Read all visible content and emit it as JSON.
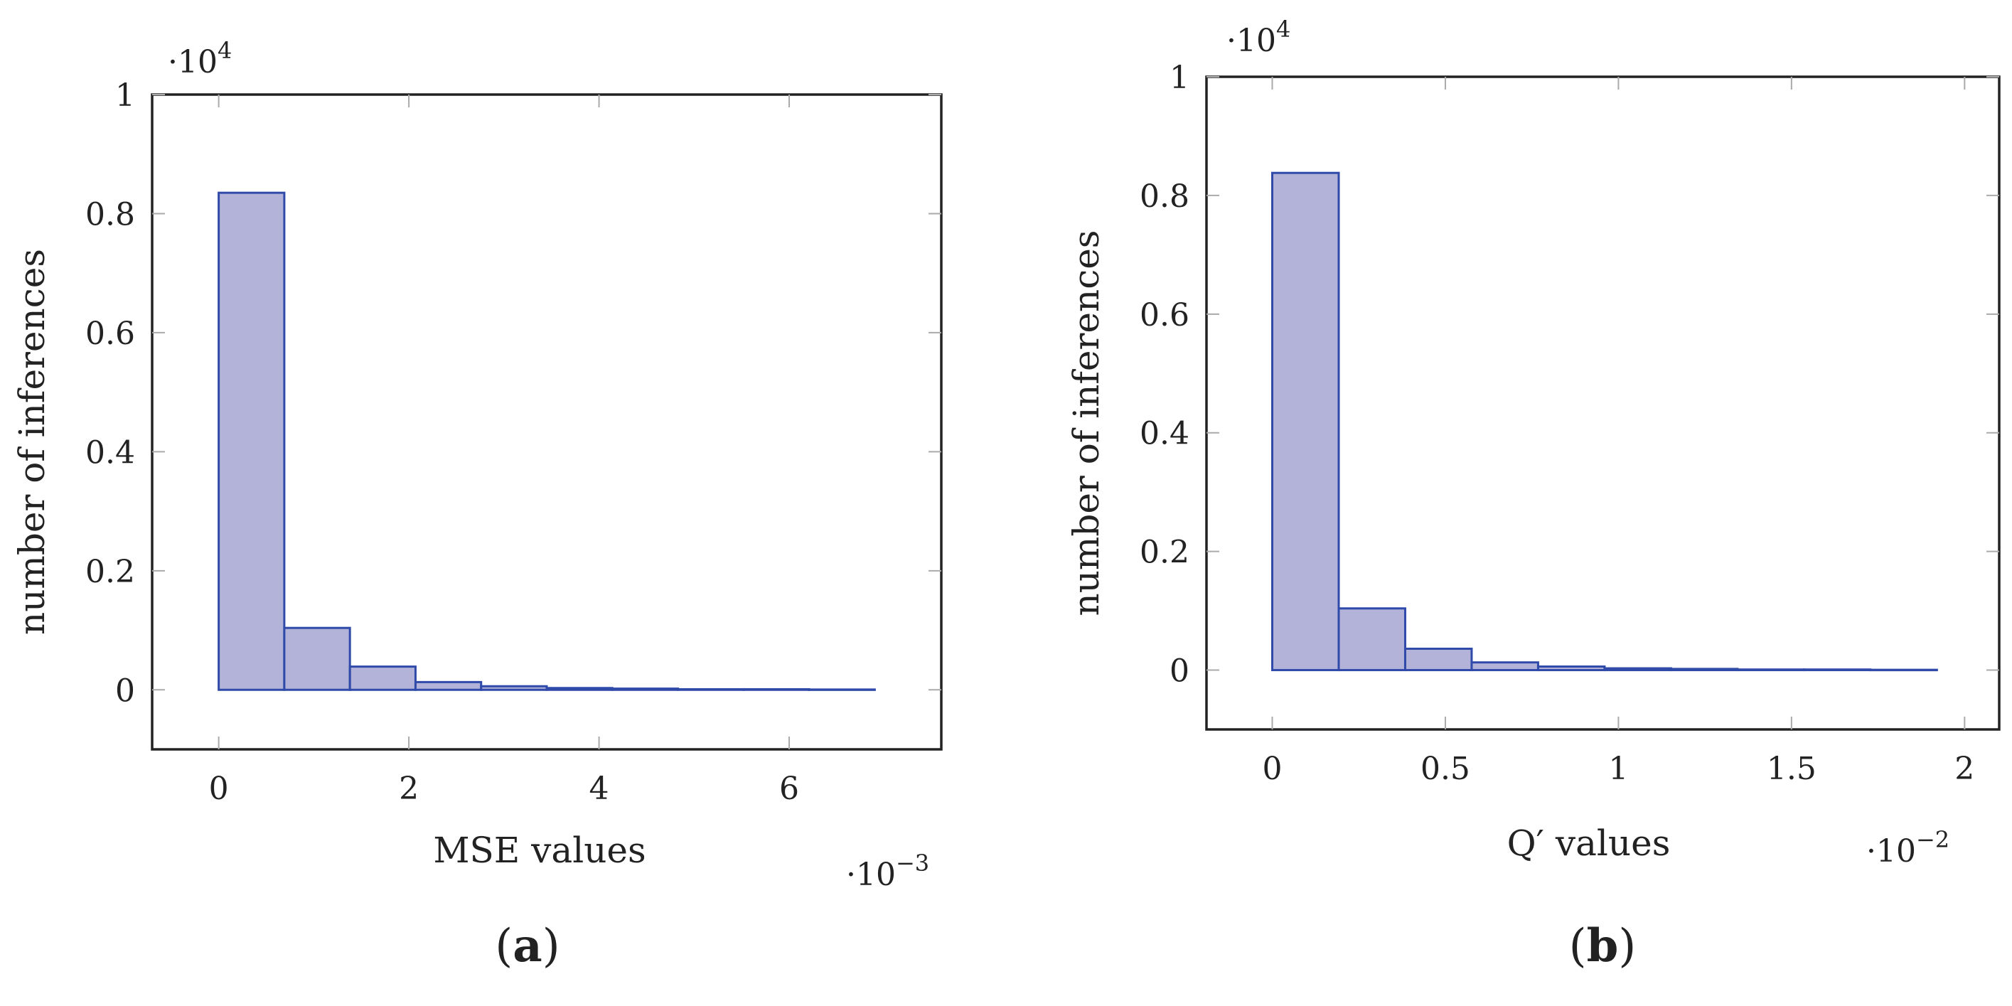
{
  "chart_data": [
    {
      "type": "bar",
      "panel_label": "(a)",
      "title": "",
      "xlabel": "MSE values",
      "ylabel": "number of inferences",
      "x_exponent_label": "·10−3",
      "y_exponent_label": "·104",
      "x_scale_note": "x values in units of 1e-3",
      "y_scale_note": "y values in units of 1e4",
      "xlim": [
        -0.7,
        7.6
      ],
      "ylim": [
        -0.1,
        1.0
      ],
      "xticks": [
        0,
        2,
        4,
        6
      ],
      "xtick_labels": [
        "0",
        "2",
        "4",
        "6"
      ],
      "yticks": [
        0,
        0.2,
        0.4,
        0.6,
        0.8,
        1
      ],
      "ytick_labels": [
        "0",
        "0.2",
        "0.4",
        "0.6",
        "0.8",
        "1"
      ],
      "bins": [
        {
          "x0": 0.0,
          "x1": 0.69,
          "value": 0.835
        },
        {
          "x0": 0.69,
          "x1": 1.38,
          "value": 0.104
        },
        {
          "x0": 1.38,
          "x1": 2.07,
          "value": 0.039
        },
        {
          "x0": 2.07,
          "x1": 2.76,
          "value": 0.013
        },
        {
          "x0": 2.76,
          "x1": 3.45,
          "value": 0.006
        },
        {
          "x0": 3.45,
          "x1": 4.14,
          "value": 0.003
        },
        {
          "x0": 4.14,
          "x1": 4.83,
          "value": 0.002
        },
        {
          "x0": 4.83,
          "x1": 5.52,
          "value": 0.001
        },
        {
          "x0": 5.52,
          "x1": 6.21,
          "value": 0.001
        },
        {
          "x0": 6.21,
          "x1": 6.9,
          "value": 0.0005
        }
      ],
      "grid": false
    },
    {
      "type": "bar",
      "panel_label": "(b)",
      "title": "",
      "xlabel": "Q′ values",
      "ylabel": "number of inferences",
      "x_exponent_label": "·10−2",
      "y_exponent_label": "·104",
      "x_scale_note": "x values in units of 1e-2",
      "y_scale_note": "y values in units of 1e4",
      "xlim": [
        -0.19,
        2.1
      ],
      "ylim": [
        -0.1,
        1.0
      ],
      "xticks": [
        0,
        0.5,
        1,
        1.5,
        2
      ],
      "xtick_labels": [
        "0",
        "0.5",
        "1",
        "1.5",
        "2"
      ],
      "yticks": [
        0,
        0.2,
        0.4,
        0.6,
        0.8,
        1
      ],
      "ytick_labels": [
        "0",
        "0.2",
        "0.4",
        "0.6",
        "0.8",
        "1"
      ],
      "bins": [
        {
          "x0": 0.0,
          "x1": 0.192,
          "value": 0.838
        },
        {
          "x0": 0.192,
          "x1": 0.384,
          "value": 0.104
        },
        {
          "x0": 0.384,
          "x1": 0.576,
          "value": 0.036
        },
        {
          "x0": 0.576,
          "x1": 0.768,
          "value": 0.013
        },
        {
          "x0": 0.768,
          "x1": 0.96,
          "value": 0.006
        },
        {
          "x0": 0.96,
          "x1": 1.152,
          "value": 0.003
        },
        {
          "x0": 1.152,
          "x1": 1.344,
          "value": 0.002
        },
        {
          "x0": 1.344,
          "x1": 1.536,
          "value": 0.001
        },
        {
          "x0": 1.536,
          "x1": 1.728,
          "value": 0.001
        },
        {
          "x0": 1.728,
          "x1": 1.92,
          "value": 0.0005
        }
      ],
      "grid": false
    }
  ],
  "colors": {
    "bar_fill": "#b3b3da",
    "bar_stroke": "#2f4aa8",
    "axis": "#222222",
    "tick": "#aaaaaa"
  }
}
